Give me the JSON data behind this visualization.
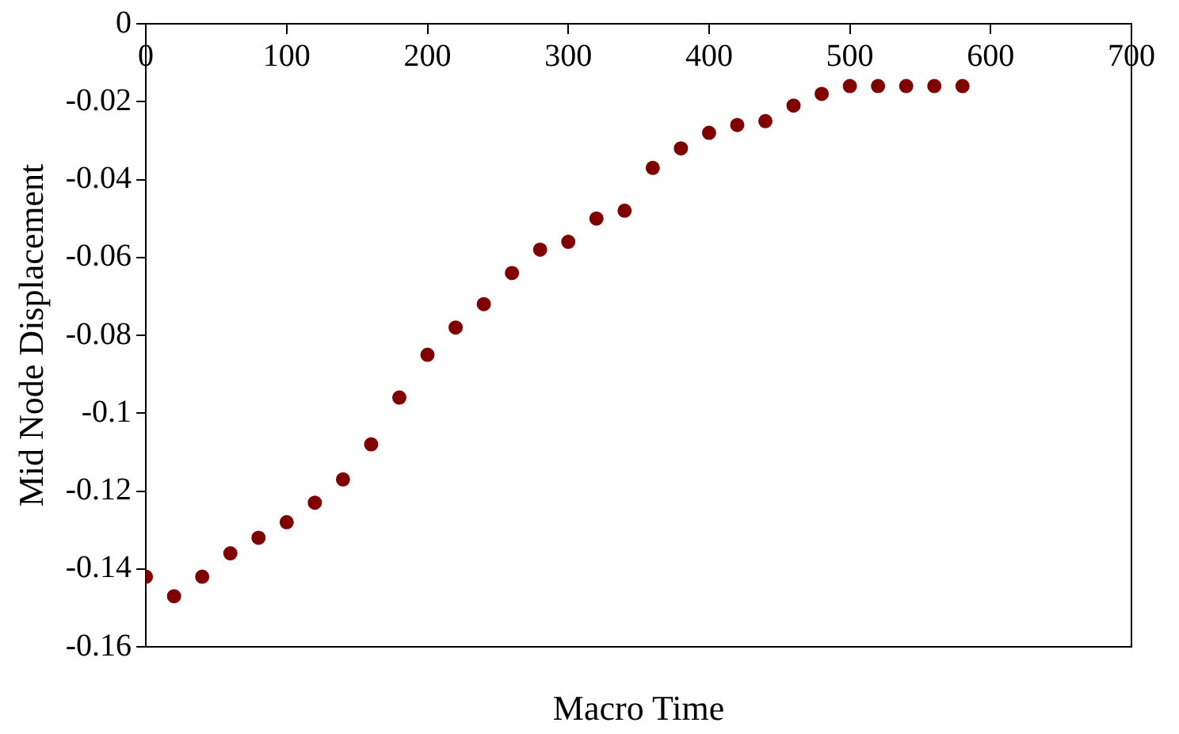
{
  "chart_data": {
    "type": "scatter",
    "xlabel": "Macro Time",
    "ylabel": "Mid Node Displacement",
    "x": [
      0,
      20,
      40,
      60,
      80,
      100,
      120,
      140,
      160,
      180,
      200,
      220,
      240,
      260,
      280,
      300,
      320,
      340,
      360,
      380,
      400,
      420,
      440,
      460,
      480,
      500,
      520,
      540,
      560,
      580
    ],
    "series": [
      {
        "color": "#800000",
        "values": [
          -0.142,
          -0.147,
          -0.142,
          -0.136,
          -0.132,
          -0.128,
          -0.123,
          -0.117,
          -0.108,
          -0.096,
          -0.085,
          -0.078,
          -0.072,
          -0.064,
          -0.058,
          -0.056,
          -0.05,
          -0.048,
          -0.037,
          -0.032,
          -0.028,
          -0.026,
          -0.025,
          -0.021,
          -0.018,
          -0.016,
          -0.016,
          -0.016,
          -0.016,
          -0.016
        ]
      }
    ],
    "xlim": [
      0,
      700
    ],
    "xticks": [
      0,
      100,
      200,
      300,
      400,
      500,
      600,
      700
    ],
    "ylim": [
      -0.16,
      0
    ],
    "yticks": [
      -0.16,
      -0.14,
      -0.12,
      -0.1,
      -0.08,
      -0.06,
      -0.04,
      -0.02,
      0
    ],
    "grid": false,
    "legend": false,
    "marker": "circle"
  }
}
